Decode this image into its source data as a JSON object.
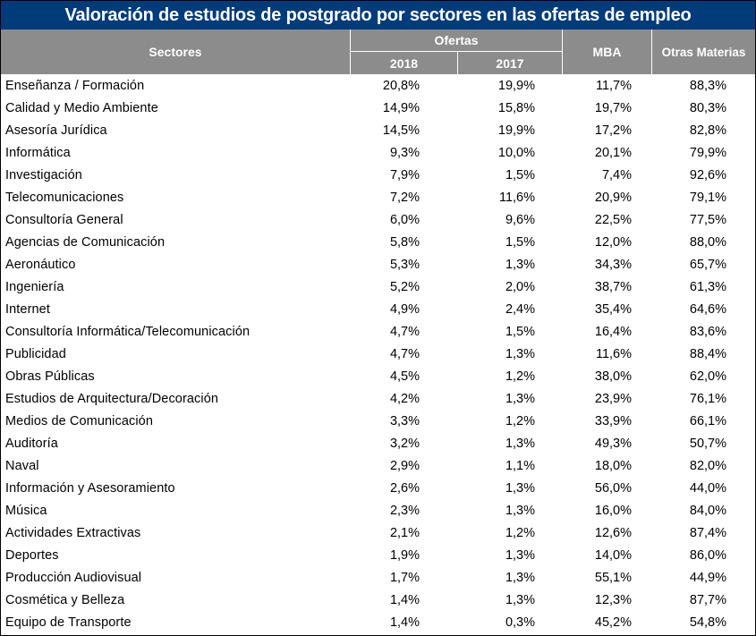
{
  "title": "Valoración de estudios de postgrado por sectores en las ofertas de empleo",
  "headers": {
    "sectores": "Sectores",
    "ofertas": "Ofertas",
    "y2018": "2018",
    "y2017": "2017",
    "mba": "MBA",
    "otras": "Otras Materias"
  },
  "chart_data": {
    "type": "table",
    "title": "Valoración de estudios de postgrado por sectores en las ofertas de empleo",
    "columns": [
      "Sectores",
      "Ofertas 2018",
      "Ofertas 2017",
      "MBA",
      "Otras Materias"
    ],
    "rows": [
      {
        "sector": "Enseñanza / Formación",
        "y2018": "20,8%",
        "y2017": "19,9%",
        "mba": "11,7%",
        "otras": "88,3%"
      },
      {
        "sector": "Calidad y Medio Ambiente",
        "y2018": "14,9%",
        "y2017": "15,8%",
        "mba": "19,7%",
        "otras": "80,3%"
      },
      {
        "sector": "Asesoría Jurídica",
        "y2018": "14,5%",
        "y2017": "19,9%",
        "mba": "17,2%",
        "otras": "82,8%"
      },
      {
        "sector": "Informática",
        "y2018": "9,3%",
        "y2017": "10,0%",
        "mba": "20,1%",
        "otras": "79,9%"
      },
      {
        "sector": "Investigación",
        "y2018": "7,9%",
        "y2017": "1,5%",
        "mba": "7,4%",
        "otras": "92,6%"
      },
      {
        "sector": "Telecomunicaciones",
        "y2018": "7,2%",
        "y2017": "11,6%",
        "mba": "20,9%",
        "otras": "79,1%"
      },
      {
        "sector": "Consultoría General",
        "y2018": "6,0%",
        "y2017": "9,6%",
        "mba": "22,5%",
        "otras": "77,5%"
      },
      {
        "sector": "Agencias de Comunicación",
        "y2018": "5,8%",
        "y2017": "1,5%",
        "mba": "12,0%",
        "otras": "88,0%"
      },
      {
        "sector": "Aeronáutico",
        "y2018": "5,3%",
        "y2017": "1,3%",
        "mba": "34,3%",
        "otras": "65,7%"
      },
      {
        "sector": "Ingeniería",
        "y2018": "5,2%",
        "y2017": "2,0%",
        "mba": "38,7%",
        "otras": "61,3%"
      },
      {
        "sector": "Internet",
        "y2018": "4,9%",
        "y2017": "2,4%",
        "mba": "35,4%",
        "otras": "64,6%"
      },
      {
        "sector": "Consultoría Informática/Telecomunicación",
        "y2018": "4,7%",
        "y2017": "1,5%",
        "mba": "16,4%",
        "otras": "83,6%"
      },
      {
        "sector": "Publicidad",
        "y2018": "4,7%",
        "y2017": "1,3%",
        "mba": "11,6%",
        "otras": "88,4%"
      },
      {
        "sector": "Obras Públicas",
        "y2018": "4,5%",
        "y2017": "1,2%",
        "mba": "38,0%",
        "otras": "62,0%"
      },
      {
        "sector": "Estudios de Arquitectura/Decoración",
        "y2018": "4,2%",
        "y2017": "1,3%",
        "mba": "23,9%",
        "otras": "76,1%"
      },
      {
        "sector": "Medios de Comunicación",
        "y2018": "3,3%",
        "y2017": "1,2%",
        "mba": "33,9%",
        "otras": "66,1%"
      },
      {
        "sector": "Auditoría",
        "y2018": "3,2%",
        "y2017": "1,3%",
        "mba": "49,3%",
        "otras": "50,7%"
      },
      {
        "sector": "Naval",
        "y2018": "2,9%",
        "y2017": "1,1%",
        "mba": "18,0%",
        "otras": "82,0%"
      },
      {
        "sector": "Información y Asesoramiento",
        "y2018": "2,6%",
        "y2017": "1,3%",
        "mba": "56,0%",
        "otras": "44,0%"
      },
      {
        "sector": "Música",
        "y2018": "2,3%",
        "y2017": "1,3%",
        "mba": "16,0%",
        "otras": "84,0%"
      },
      {
        "sector": "Actividades Extractivas",
        "y2018": "2,1%",
        "y2017": "1,2%",
        "mba": "12,6%",
        "otras": "87,4%"
      },
      {
        "sector": "Deportes",
        "y2018": "1,9%",
        "y2017": "1,3%",
        "mba": "14,0%",
        "otras": "86,0%"
      },
      {
        "sector": "Producción Audiovisual",
        "y2018": "1,7%",
        "y2017": "1,3%",
        "mba": "55,1%",
        "otras": "44,9%"
      },
      {
        "sector": "Cosmética y Belleza",
        "y2018": "1,4%",
        "y2017": "1,3%",
        "mba": "12,3%",
        "otras": "87,7%"
      },
      {
        "sector": "Equipo de Transporte",
        "y2018": "1,4%",
        "y2017": "0,3%",
        "mba": "45,2%",
        "otras": "54,8%"
      }
    ]
  },
  "colors": {
    "title_bg": "#003b7a",
    "header_bg": "#8c8c8c",
    "header_text": "#ffffff"
  }
}
